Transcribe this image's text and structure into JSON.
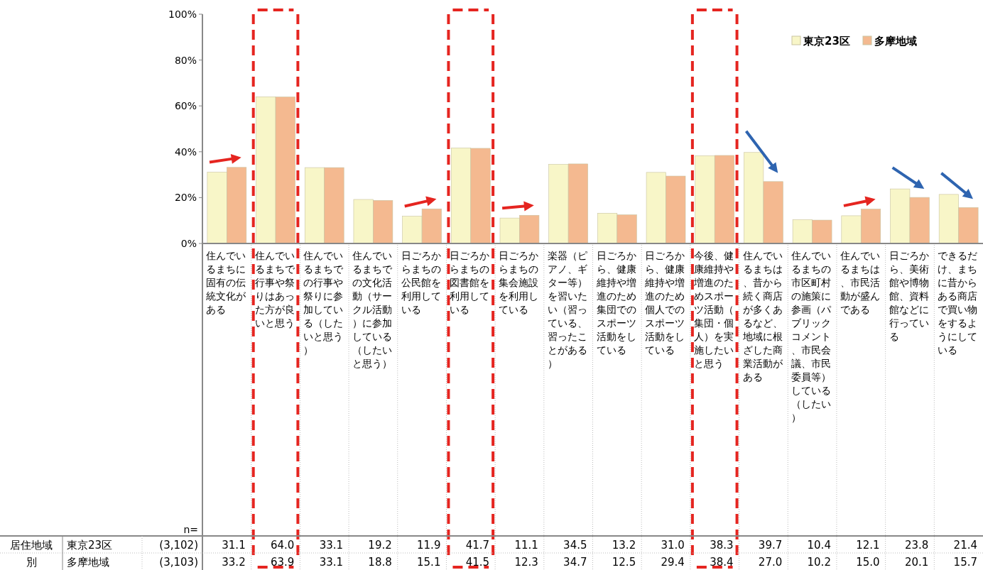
{
  "chart_data": {
    "type": "bar",
    "categories": [
      "住んでいるまちに固有の伝統文化がある",
      "住んでいるまちで行事や祭りはあった方が良いと思う",
      "住んでいるまちでの行事や祭りに参加している（したいと思う）",
      "住んでいるまちでの文化活動（サークル活動）に参加している（したいと思う）",
      "日ごろからまちの公民館を利用している",
      "日ごろからまちの図書館を利用している",
      "日ごろからまちの集会施設を利用している",
      "楽器（ピアノ、ギター等）を習いたい（習っている、習ったことがある）",
      "日ごろから、健康維持や増進のため集団でのスポーツ活動をしている",
      "日ごろから、健康維持や増進のため個人でのスポーツ活動をしている",
      "今後、健康維持や増進のためスポーツ活動（集団・個人）を実施したいと思う",
      "住んでいるまちは、昔から続く商店が多くあるなど、地域に根ざした商業活動がある",
      "住んでいるまちの市区町村の施策に参画（パブリックコメント、市民会議、市民委員等）している（したい）",
      "住んでいるまちは、市民活動が盛んである",
      "日ごろから、美術館や博物館、資料館などに行っている",
      "できるだけ、まちに昔からある商店で買い物をするようにしている"
    ],
    "series": [
      {
        "name": "東京23区",
        "color": "#f8f6c8",
        "values": [
          31.1,
          64.0,
          33.1,
          19.2,
          11.9,
          41.7,
          11.1,
          34.5,
          13.2,
          31.0,
          38.3,
          39.7,
          10.4,
          12.1,
          23.8,
          21.4
        ],
        "value_labels": [
          "31.1",
          "64.0",
          "33.1",
          "19.2",
          "11.9",
          "41.7",
          "11.1",
          "34.5",
          "13.2",
          "31.0",
          "38.3",
          "39.7",
          "10.4",
          "12.1",
          "23.8",
          "21.4"
        ]
      },
      {
        "name": "多摩地域",
        "color": "#f4b990",
        "values": [
          33.2,
          63.9,
          33.1,
          18.8,
          15.1,
          41.5,
          12.3,
          34.7,
          12.5,
          29.4,
          38.4,
          27.0,
          10.2,
          15.0,
          20.1,
          15.7
        ],
        "value_labels": [
          "33.2",
          "63.9",
          "33.1",
          "18.8",
          "15.1",
          "41.5",
          "12.3",
          "34.7",
          "12.5",
          "29.4",
          "38.4",
          "27.0",
          "10.2",
          "15.0",
          "20.1",
          "15.7"
        ]
      }
    ],
    "ylim": [
      0,
      100
    ],
    "yticks": [
      {
        "value": 0,
        "label": "0%"
      },
      {
        "value": 20,
        "label": "20%"
      },
      {
        "value": 40,
        "label": "40%"
      },
      {
        "value": 60,
        "label": "60%"
      },
      {
        "value": 80,
        "label": "80%"
      },
      {
        "value": 100,
        "label": "100%"
      }
    ],
    "legend": "top right",
    "grid": false,
    "annotations": [
      "n=",
      "居住地域別",
      "(3,102)",
      "(3,103)"
    ]
  }
}
